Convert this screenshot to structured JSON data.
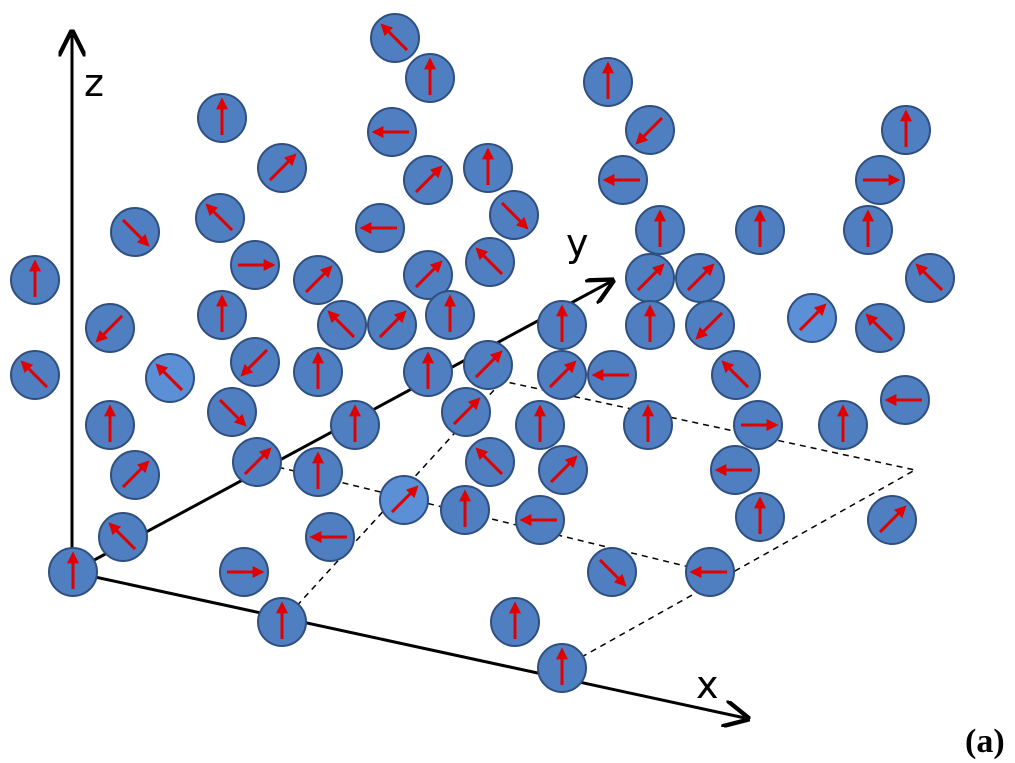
{
  "axes": {
    "z": "z",
    "y": "y",
    "x": "x"
  },
  "panel_label": "(a)"
}
